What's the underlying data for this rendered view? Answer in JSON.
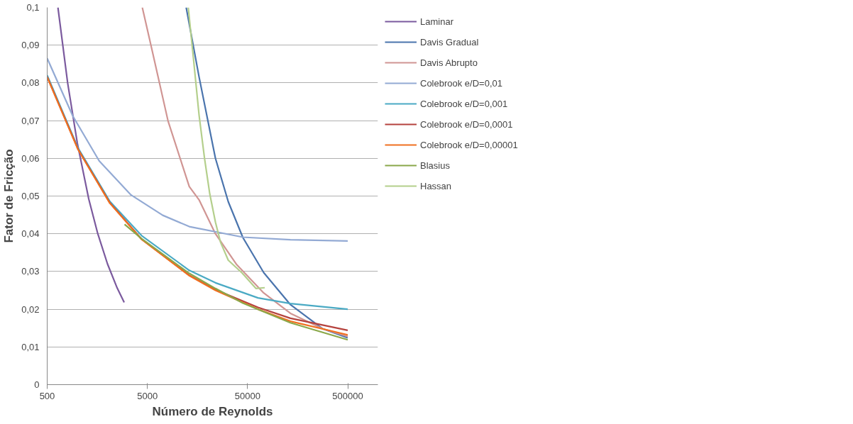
{
  "chart_data": {
    "type": "line",
    "xlabel": "Número de Reynolds",
    "ylabel": "Fator de Fricção",
    "log": "x",
    "grid": "y",
    "legend": "right",
    "marker": "none",
    "line_style": "solid",
    "xlim": [
      500,
      1000000
    ],
    "xticks": [
      500,
      5000,
      50000,
      500000
    ],
    "ylim": [
      0,
      0.1
    ],
    "yticks": [
      0,
      {
        "value": 0.01,
        "label": "0,01"
      },
      {
        "value": 0.02,
        "label": "0,02"
      },
      {
        "value": 0.03,
        "label": "0,03"
      },
      {
        "value": 0.04,
        "label": "0,04"
      },
      {
        "value": 0.05,
        "label": "0,05"
      },
      {
        "value": 0.06,
        "label": "0,06"
      },
      {
        "value": 0.07,
        "label": "0,07"
      },
      {
        "value": 0.08,
        "label": "0,08"
      },
      {
        "value": 0.09,
        "label": "0,09"
      },
      {
        "value": 0.1,
        "label": "0,1"
      }
    ],
    "series": [
      {
        "name": "Laminar",
        "color": "#7b5a9e",
        "x": [
          640,
          800,
          1000,
          1300,
          1600,
          2000,
          2500,
          2935
        ],
        "values": [
          0.1,
          0.08,
          0.064,
          0.0492,
          0.04,
          0.032,
          0.0256,
          0.0218
        ]
      },
      {
        "name": "Davis Gradual",
        "color": "#4a74ad",
        "x": [
          12200,
          16400,
          23900,
          32100,
          44900,
          72500,
          134000,
          282000,
          500000
        ],
        "values": [
          0.1,
          0.0816,
          0.06,
          0.0485,
          0.039,
          0.0297,
          0.0212,
          0.0148,
          0.0124
        ]
      },
      {
        "name": "Davis Abrupto",
        "color": "#d09593",
        "x": [
          4450,
          5590,
          8040,
          13100,
          16400,
          23900,
          39000,
          72500,
          134000,
          282000,
          500000
        ],
        "values": [
          0.1,
          0.0885,
          0.0699,
          0.0525,
          0.049,
          0.04,
          0.0318,
          0.0243,
          0.0189,
          0.0148,
          0.0128
        ]
      },
      {
        "name": "Colebrook e/D=0,01",
        "color": "#93aad4",
        "x": [
          500,
          898,
          1653,
          3430,
          7120,
          13100,
          44900,
          134000,
          500000
        ],
        "values": [
          0.0865,
          0.0713,
          0.0593,
          0.0503,
          0.0449,
          0.0419,
          0.0391,
          0.0384,
          0.0381
        ]
      },
      {
        "name": "Colebrook e/D=0,001",
        "color": "#4aaac4",
        "x": [
          500,
          1017,
          2110,
          4380,
          13100,
          23900,
          63500,
          134000,
          500000
        ],
        "values": [
          0.082,
          0.0627,
          0.0486,
          0.0395,
          0.0303,
          0.027,
          0.023,
          0.0215,
          0.02
        ]
      },
      {
        "name": "Colebrook e/D=0,0001",
        "color": "#b5423e",
        "x": [
          500,
          1017,
          2110,
          4380,
          13100,
          23900,
          63500,
          134000,
          500000
        ],
        "values": [
          0.0816,
          0.0624,
          0.0482,
          0.0386,
          0.029,
          0.0252,
          0.0205,
          0.0176,
          0.0144
        ]
      },
      {
        "name": "Colebrook e/D=0,00001",
        "color": "#f07020",
        "x": [
          500,
          1017,
          2110,
          4380,
          13100,
          23900,
          63500,
          134000,
          500000
        ],
        "values": [
          0.0815,
          0.0623,
          0.0481,
          0.0385,
          0.0289,
          0.025,
          0.02,
          0.0168,
          0.0132
        ]
      },
      {
        "name": "Blasius",
        "color": "#8aa84a",
        "x": [
          2960,
          4380,
          13100,
          23900,
          44900,
          134000,
          500000
        ],
        "values": [
          0.0425,
          0.0387,
          0.0295,
          0.0255,
          0.0216,
          0.0164,
          0.0119
        ]
      },
      {
        "name": "Hassan",
        "color": "#b4cf8c",
        "x": [
          12800,
          14600,
          16400,
          18600,
          21000,
          23900,
          26900,
          32100,
          44100,
          60600,
          74300
        ],
        "values": [
          0.1,
          0.085,
          0.0715,
          0.06,
          0.0505,
          0.0431,
          0.0377,
          0.033,
          0.0296,
          0.0255,
          0.0257
        ]
      }
    ]
  }
}
